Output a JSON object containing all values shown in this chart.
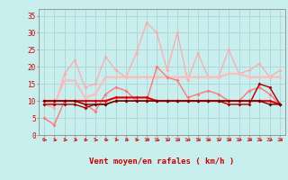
{
  "x": [
    0,
    1,
    2,
    3,
    4,
    5,
    6,
    7,
    8,
    9,
    10,
    11,
    12,
    13,
    14,
    15,
    16,
    17,
    18,
    19,
    20,
    21,
    22,
    23
  ],
  "background_color": "#c8eeee",
  "grid_color": "#b0d8d8",
  "xlabel": "Vent moyen/en rafales ( km/h )",
  "xlabel_color": "#cc0000",
  "yticks": [
    0,
    5,
    10,
    15,
    20,
    25,
    30,
    35
  ],
  "ylim": [
    0,
    37
  ],
  "xlim": [
    -0.5,
    23.5
  ],
  "series": [
    {
      "name": "rafales_lightest",
      "color": "#ffaaaa",
      "linewidth": 0.9,
      "marker": "D",
      "markersize": 2.0,
      "values": [
        9,
        8,
        18,
        22,
        14,
        15,
        23,
        19,
        17,
        24,
        33,
        30,
        19,
        30,
        16,
        24,
        17,
        17,
        25,
        18,
        19,
        21,
        17,
        19
      ]
    },
    {
      "name": "vent_avg_light",
      "color": "#ffbbbb",
      "linewidth": 1.5,
      "marker": "D",
      "markersize": 2.0,
      "values": [
        10,
        9,
        16,
        16,
        11,
        12,
        17,
        17,
        17,
        17,
        17,
        17,
        17,
        17,
        17,
        17,
        17,
        17,
        18,
        18,
        17,
        17,
        17,
        17
      ]
    },
    {
      "name": "vent_med",
      "color": "#ff7777",
      "linewidth": 1.0,
      "marker": "D",
      "markersize": 2.0,
      "values": [
        5,
        3,
        10,
        10,
        9,
        7,
        12,
        14,
        13,
        10,
        10,
        20,
        17,
        16,
        11,
        12,
        13,
        12,
        10,
        10,
        13,
        14,
        12,
        9
      ]
    },
    {
      "name": "vent_dark1",
      "color": "#dd0000",
      "linewidth": 1.5,
      "marker": "D",
      "markersize": 2.0,
      "values": [
        10,
        10,
        10,
        10,
        10,
        10,
        10,
        11,
        11,
        11,
        11,
        10,
        10,
        10,
        10,
        10,
        10,
        10,
        10,
        10,
        10,
        10,
        10,
        9
      ]
    },
    {
      "name": "vent_dark2",
      "color": "#aa0000",
      "linewidth": 1.0,
      "marker": "D",
      "markersize": 2.0,
      "values": [
        9,
        9,
        9,
        9,
        8,
        9,
        9,
        10,
        10,
        10,
        10,
        10,
        10,
        10,
        10,
        10,
        10,
        10,
        9,
        9,
        9,
        15,
        14,
        9
      ]
    },
    {
      "name": "vent_darkest",
      "color": "#770000",
      "linewidth": 1.0,
      "marker": "D",
      "markersize": 2.0,
      "values": [
        10,
        10,
        10,
        10,
        9,
        9,
        9,
        10,
        10,
        10,
        10,
        10,
        10,
        10,
        10,
        10,
        10,
        10,
        10,
        10,
        10,
        10,
        9,
        9
      ]
    }
  ],
  "wind_arrow_angles": [
    90,
    90,
    90,
    90,
    90,
    90,
    90,
    90,
    90,
    90,
    90,
    90,
    135,
    135,
    135,
    135,
    135,
    135,
    90,
    90,
    90,
    90,
    135,
    90
  ],
  "arrow_color": "#cc2222"
}
